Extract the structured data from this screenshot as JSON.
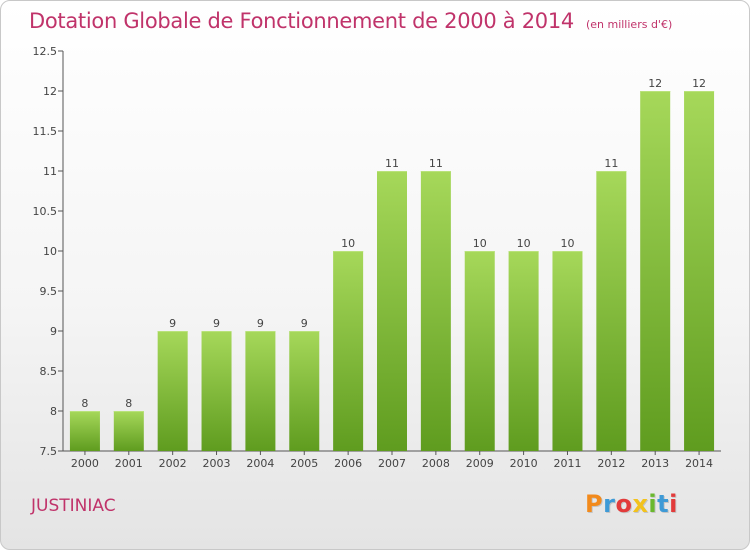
{
  "header": {
    "title": "Dotation Globale de Fonctionnement de 2000 à 2014",
    "subtitle": "(en milliers d'€)"
  },
  "footer": {
    "commune": "JUSTINIAC",
    "brand": "Proxiti",
    "brand_colors": [
      "#f28a1c",
      "#3e9ad6",
      "#e23b3b",
      "#f2c21c",
      "#6ab82e",
      "#3e9ad6",
      "#e23b3b"
    ]
  },
  "chart_data": {
    "type": "bar",
    "categories": [
      "2000",
      "2001",
      "2002",
      "2003",
      "2004",
      "2005",
      "2006",
      "2007",
      "2008",
      "2009",
      "2010",
      "2011",
      "2012",
      "2013",
      "2014"
    ],
    "values": [
      8,
      8,
      9,
      9,
      9,
      9,
      10,
      11,
      11,
      10,
      10,
      10,
      11,
      12,
      12
    ],
    "ylim": [
      7.5,
      12.5
    ],
    "yticks": [
      "7.5",
      "8",
      "8.5",
      "9",
      "9.5",
      "10",
      "10.5",
      "11",
      "11.5",
      "12",
      "12.5"
    ],
    "grid": false,
    "bar_color": "#8cc63f",
    "bar_color_dark": "#5e9a1e"
  }
}
